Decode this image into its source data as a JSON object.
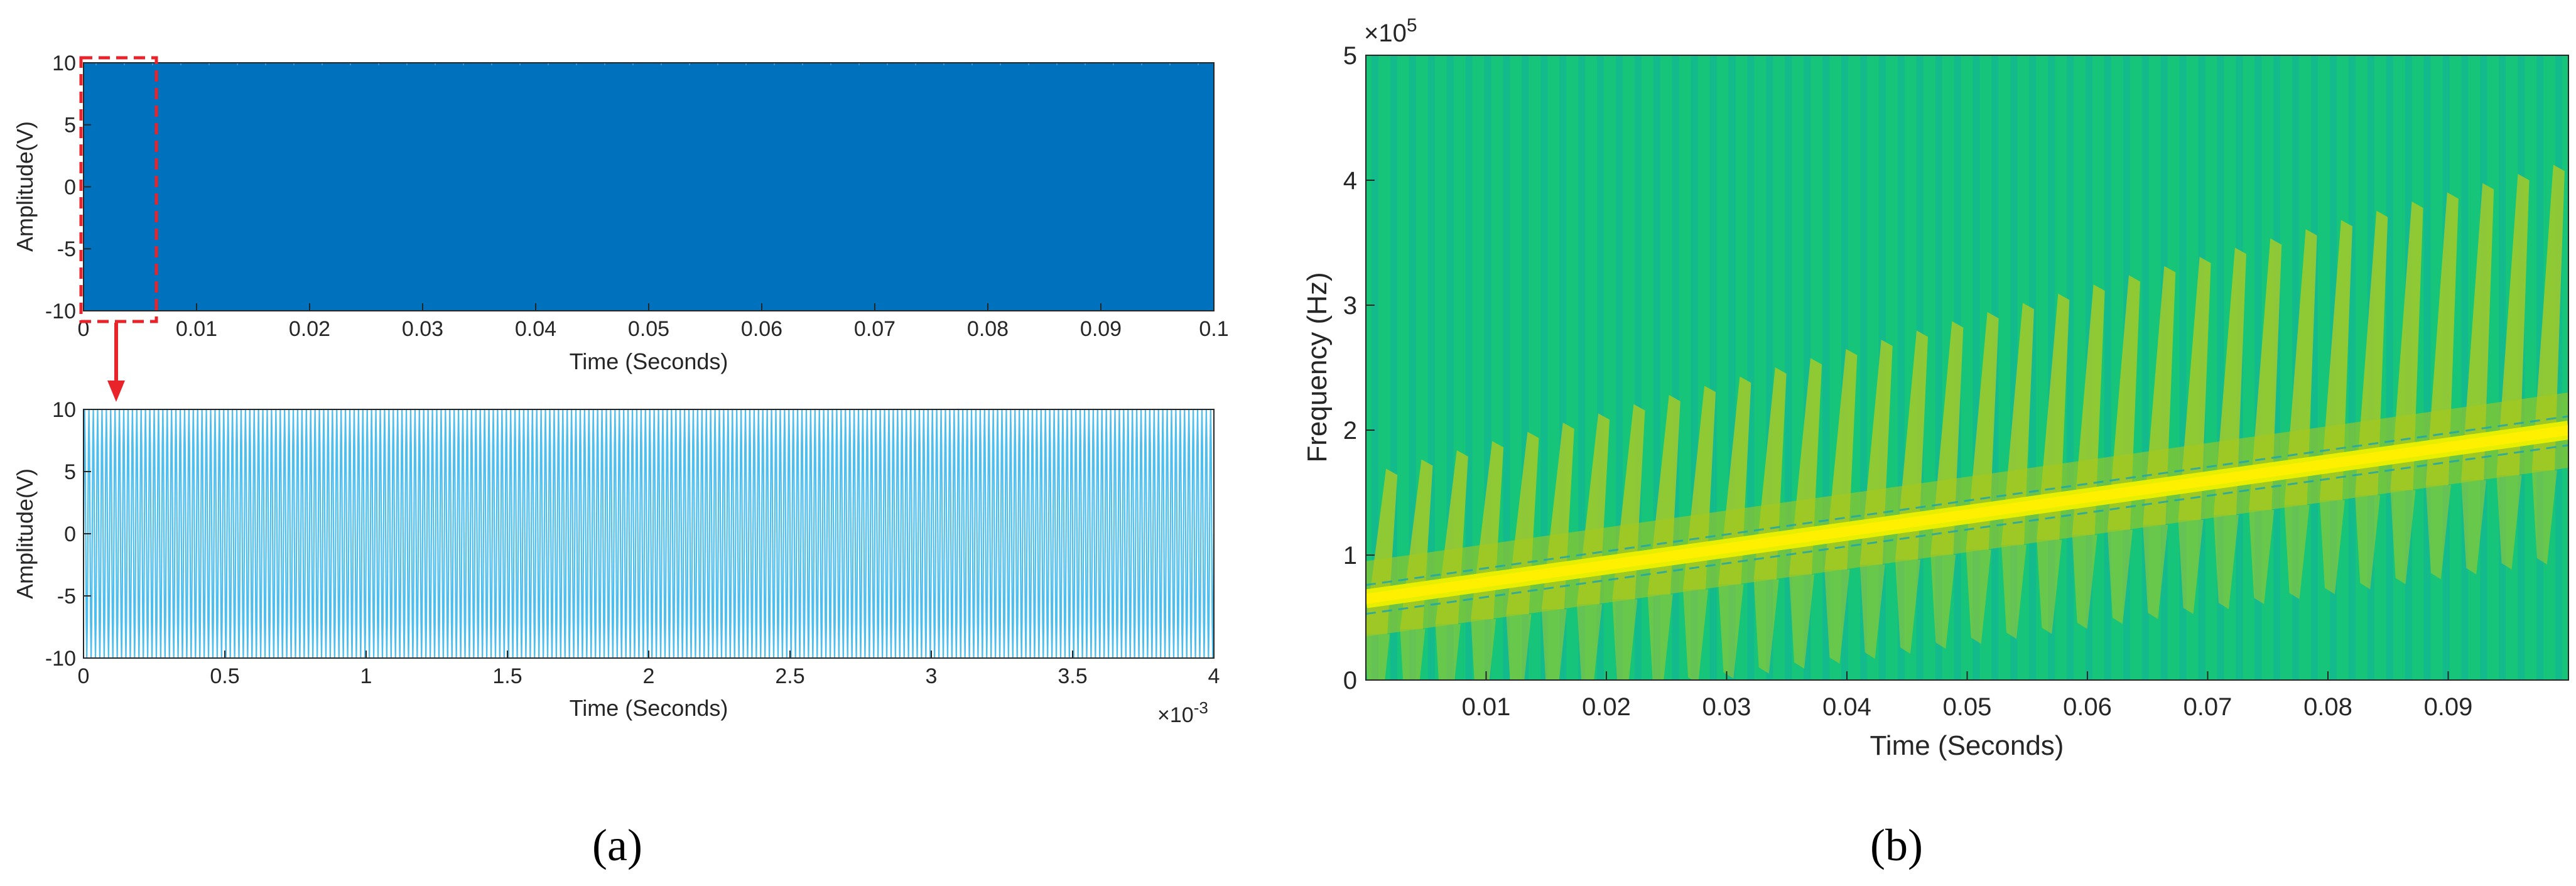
{
  "chart_data": [
    {
      "panel": "a-top",
      "type": "line",
      "title": "",
      "xlabel": "Time (Seconds)",
      "ylabel": "Amplitude(V)",
      "xlim": [
        0,
        0.1
      ],
      "ylim": [
        -10,
        10
      ],
      "xticks": [
        "0",
        "0.01",
        "0.02",
        "0.03",
        "0.04",
        "0.05",
        "0.06",
        "0.07",
        "0.08",
        "0.09",
        "0.1"
      ],
      "yticks": [
        "10",
        "5",
        "0",
        "-5",
        "-10"
      ],
      "series": [
        {
          "amplitude": 10,
          "color": "#0072bd"
        }
      ],
      "annotation": {
        "zoom_region_x": [
          0,
          0.004
        ],
        "color": "#e8232a"
      }
    },
    {
      "panel": "a-bottom",
      "type": "line",
      "title": "",
      "xlabel": "Time (Seconds)",
      "ylabel": "Amplitude(V)",
      "xlim": [
        0,
        4
      ],
      "ylim": [
        -10,
        10
      ],
      "xticks": [
        "0",
        "0.5",
        "1",
        "1.5",
        "2",
        "2.5",
        "3",
        "3.5",
        "4"
      ],
      "yticks": [
        "10",
        "5",
        "0",
        "-5",
        "-10"
      ],
      "x_exponent_base": "×10",
      "x_exponent": "-3",
      "series": [
        {
          "amplitude": 10,
          "cycles": 260,
          "color": "#4dbeee"
        }
      ]
    },
    {
      "panel": "b",
      "type": "heatmap",
      "title": "",
      "xlabel": "Time (Seconds)",
      "ylabel": "Frequency (Hz)",
      "xlim": [
        0,
        0.1
      ],
      "ylim": [
        0,
        500000
      ],
      "xticks": [
        "0.01",
        "0.02",
        "0.03",
        "0.04",
        "0.05",
        "0.06",
        "0.07",
        "0.08",
        "0.09"
      ],
      "yticks": [
        "5",
        "4",
        "3",
        "2",
        "1",
        "0"
      ],
      "y_exponent_base": "×10",
      "y_exponent": "5",
      "ridge": {
        "start_hz": 65000,
        "end_hz": 200000
      },
      "colors": {
        "background": "#16c47a",
        "ridge": "#fff000",
        "sidelobe": "#b8cc1e",
        "bands": "#13b39a"
      }
    }
  ],
  "labels": {
    "a": "(a)",
    "b": "(b)"
  }
}
